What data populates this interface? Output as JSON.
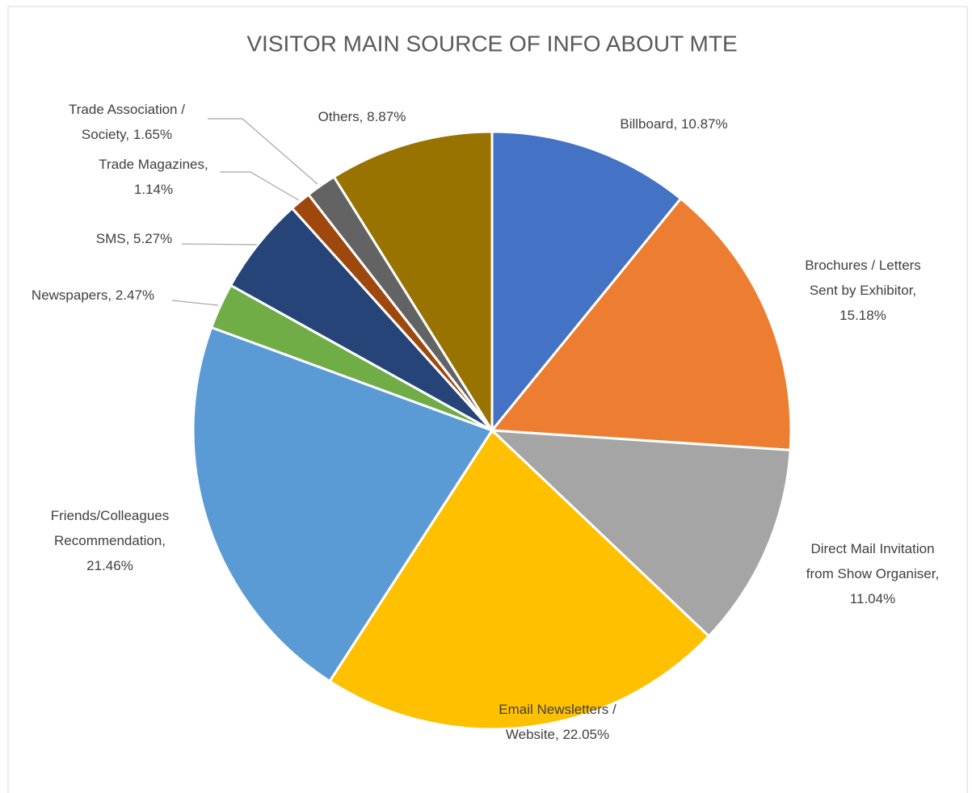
{
  "chart_data": {
    "type": "pie",
    "title": "VISITOR MAIN SOURCE OF INFO ABOUT MTE",
    "values": [
      10.87,
      15.18,
      11.04,
      22.05,
      21.46,
      2.47,
      5.27,
      1.14,
      1.65,
      8.87
    ],
    "value_labels": [
      [
        "Billboard, 10.87%"
      ],
      [
        "Brochures / Letters",
        "Sent by Exhibitor,",
        "15.18%"
      ],
      [
        "Direct Mail Invitation",
        "from Show Organiser,",
        "11.04%"
      ],
      [
        "Email Newsletters /",
        "Website, 22.05%"
      ],
      [
        "Friends/Colleagues",
        "Recommendation,",
        "21.46%"
      ],
      [
        "Newspapers, 2.47%"
      ],
      [
        "SMS, 5.27%"
      ],
      [
        "Trade Magazines,",
        "1.14%"
      ],
      [
        "Trade Association /",
        "Society, 1.65%"
      ],
      [
        "Others, 8.87%"
      ]
    ],
    "colors": [
      "#4472c4",
      "#ed7d31",
      "#a5a5a5",
      "#ffc000",
      "#5b9bd5",
      "#70ad47",
      "#264478",
      "#9e480e",
      "#636363",
      "#997300"
    ]
  }
}
